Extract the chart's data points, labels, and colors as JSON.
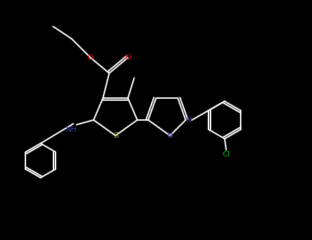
{
  "bg_color": "#000000",
  "bond_color": "#ffffff",
  "atom_colors": {
    "O": "#ff0000",
    "N": "#4040aa",
    "S": "#aaaa00",
    "Cl": "#00cc00",
    "C": "#ffffff"
  },
  "figsize": [
    4.55,
    3.5
  ],
  "dpi": 100
}
